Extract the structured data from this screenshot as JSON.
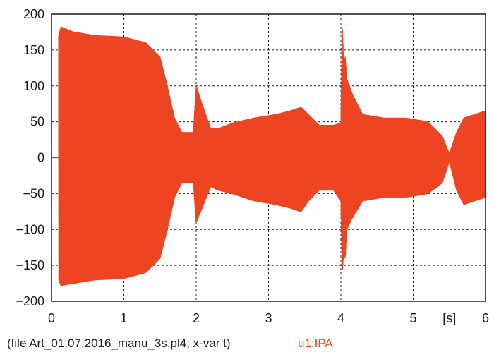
{
  "chart_data": {
    "type": "line",
    "x_ticks": [
      "0",
      "1",
      "2",
      "3",
      "4",
      "5",
      "6"
    ],
    "y_ticks": [
      "200",
      "150",
      "100",
      "50",
      "0",
      "−50",
      "−100",
      "−150",
      "−200"
    ],
    "x_unit_label": "[s]",
    "xlim": [
      0,
      6
    ],
    "ylim": [
      -200,
      200
    ],
    "grid": true,
    "grid_style": "dashed",
    "series": [
      {
        "name": "u1:IPA",
        "color": "#ee4422",
        "envelope": {
          "t": [
            0.1,
            0.13,
            0.3,
            0.6,
            1.0,
            1.3,
            1.5,
            1.6,
            1.7,
            1.8,
            1.9,
            1.96,
            2.0,
            2.08,
            2.2,
            2.3,
            2.5,
            2.8,
            3.1,
            3.3,
            3.45,
            3.55,
            3.7,
            3.9,
            4.0,
            4.02,
            4.04,
            4.06,
            4.08,
            4.15,
            4.3,
            4.6,
            4.9,
            5.2,
            5.4,
            5.5,
            5.6,
            5.7,
            6.0
          ],
          "upper": [
            170,
            182,
            175,
            170,
            168,
            160,
            140,
            100,
            55,
            35,
            35,
            35,
            100,
            75,
            40,
            40,
            48,
            55,
            60,
            65,
            70,
            60,
            45,
            45,
            48,
            180,
            130,
            140,
            110,
            90,
            60,
            55,
            55,
            50,
            30,
            5,
            35,
            55,
            65
          ],
          "lower": [
            -170,
            -178,
            -175,
            -170,
            -168,
            -160,
            -140,
            -100,
            -55,
            -35,
            -35,
            -35,
            -90,
            -70,
            -40,
            -45,
            -50,
            -60,
            -65,
            -70,
            -75,
            -60,
            -45,
            -45,
            -60,
            -160,
            -130,
            -140,
            -100,
            -85,
            -60,
            -55,
            -55,
            -50,
            -35,
            -5,
            -45,
            -65,
            -55
          ]
        }
      }
    ]
  },
  "footer": {
    "file_caption": "(file Art_01.07.2016_manu_3s.pl4; x-var t)",
    "series_label": "u1:IPA"
  }
}
